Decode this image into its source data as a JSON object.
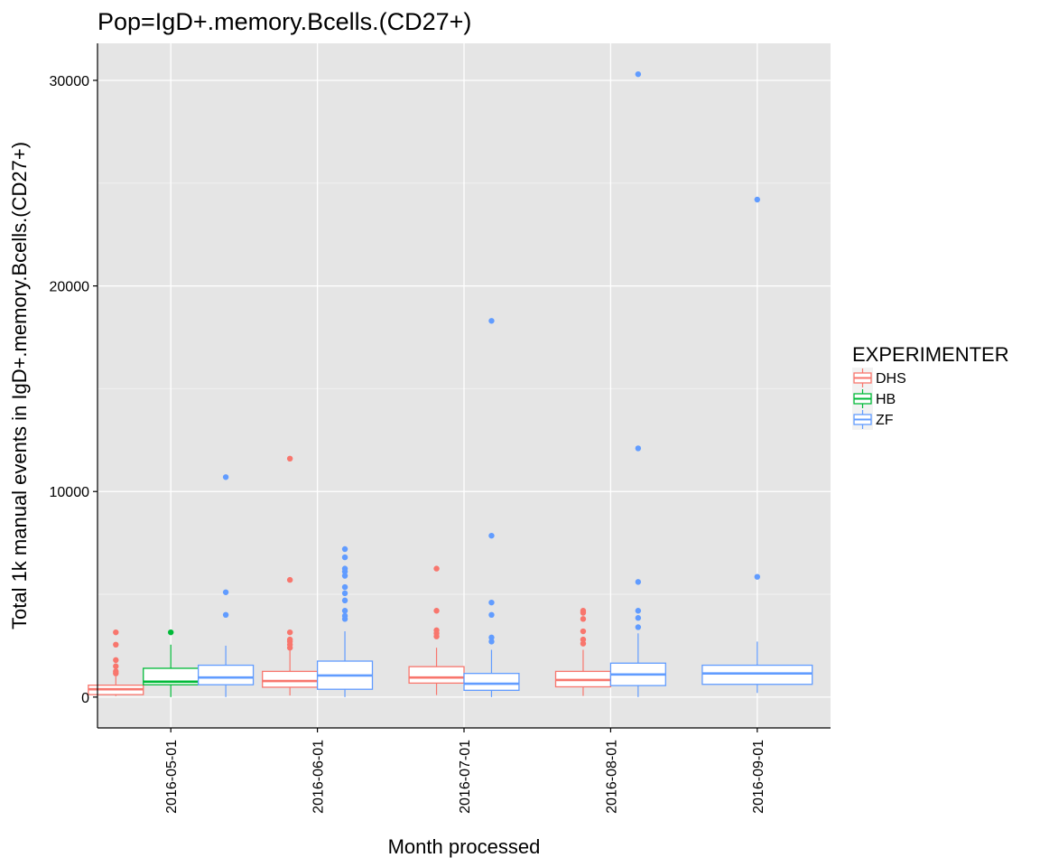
{
  "chart_data": {
    "type": "boxplot",
    "title": "Pop=IgD+.memory.Bcells.(CD27+)",
    "xlabel": "Month processed",
    "ylabel": "Total 1k manual events in IgD+.memory.Bcells.(CD27+)",
    "ylim": [
      -1500,
      31800
    ],
    "yticks": [
      0,
      10000,
      20000,
      30000
    ],
    "grid": true,
    "legend": {
      "title": "EXPERIMENTER",
      "position": "right"
    },
    "categories": [
      "2016-05-01",
      "2016-06-01",
      "2016-07-01",
      "2016-08-01",
      "2016-09-01"
    ],
    "series": [
      {
        "name": "DHS",
        "color": "#F8766D"
      },
      {
        "name": "HB",
        "color": "#00BA38"
      },
      {
        "name": "ZF",
        "color": "#619CFF"
      }
    ],
    "boxes": [
      {
        "category": "2016-05-01",
        "series": "DHS",
        "offset": -1,
        "width": 1,
        "min": 50,
        "q1": 120,
        "median": 380,
        "q3": 580,
        "max": 1000,
        "outliers": [
          1150,
          1250,
          1500,
          1800,
          2550,
          3150
        ]
      },
      {
        "category": "2016-05-01",
        "series": "HB",
        "offset": 0,
        "width": 1,
        "min": 0,
        "q1": 600,
        "median": 750,
        "q3": 1400,
        "max": 2550,
        "outliers": [
          3150
        ]
      },
      {
        "category": "2016-05-01",
        "series": "ZF",
        "offset": 1,
        "width": 1,
        "min": 0,
        "q1": 600,
        "median": 950,
        "q3": 1550,
        "max": 2500,
        "outliers": [
          4000,
          5100,
          10700
        ]
      },
      {
        "category": "2016-06-01",
        "series": "DHS",
        "offset": -0.5,
        "width": 1,
        "min": 80,
        "q1": 480,
        "median": 780,
        "q3": 1250,
        "max": 2300,
        "outliers": [
          2400,
          2550,
          2700,
          2800,
          3150,
          5700,
          11600
        ]
      },
      {
        "category": "2016-06-01",
        "series": "ZF",
        "offset": 0.5,
        "width": 1,
        "min": 0,
        "q1": 380,
        "median": 1050,
        "q3": 1750,
        "max": 3200,
        "outliers": [
          3800,
          3950,
          4200,
          4700,
          5050,
          5350,
          5900,
          6100,
          6250,
          6800,
          7200
        ]
      },
      {
        "category": "2016-07-01",
        "series": "DHS",
        "offset": -0.5,
        "width": 1,
        "min": 100,
        "q1": 680,
        "median": 950,
        "q3": 1480,
        "max": 2400,
        "outliers": [
          2950,
          3100,
          3250,
          4200,
          6250
        ]
      },
      {
        "category": "2016-07-01",
        "series": "ZF",
        "offset": 0.5,
        "width": 1,
        "min": 0,
        "q1": 330,
        "median": 650,
        "q3": 1150,
        "max": 2300,
        "outliers": [
          2700,
          2900,
          4000,
          4600,
          7850,
          18300
        ]
      },
      {
        "category": "2016-08-01",
        "series": "DHS",
        "offset": -0.5,
        "width": 1,
        "min": 60,
        "q1": 500,
        "median": 830,
        "q3": 1250,
        "max": 2300,
        "outliers": [
          2600,
          2800,
          3200,
          3800,
          4100,
          4200
        ]
      },
      {
        "category": "2016-08-01",
        "series": "ZF",
        "offset": 0.5,
        "width": 1,
        "min": 0,
        "q1": 560,
        "median": 1100,
        "q3": 1650,
        "max": 3100,
        "outliers": [
          3400,
          3850,
          4200,
          5600,
          12100,
          30300
        ]
      },
      {
        "category": "2016-09-01",
        "series": "ZF",
        "offset": 0,
        "width": 2,
        "min": 200,
        "q1": 620,
        "median": 1150,
        "q3": 1550,
        "max": 2700,
        "outliers": [
          5850,
          24200
        ]
      }
    ]
  }
}
